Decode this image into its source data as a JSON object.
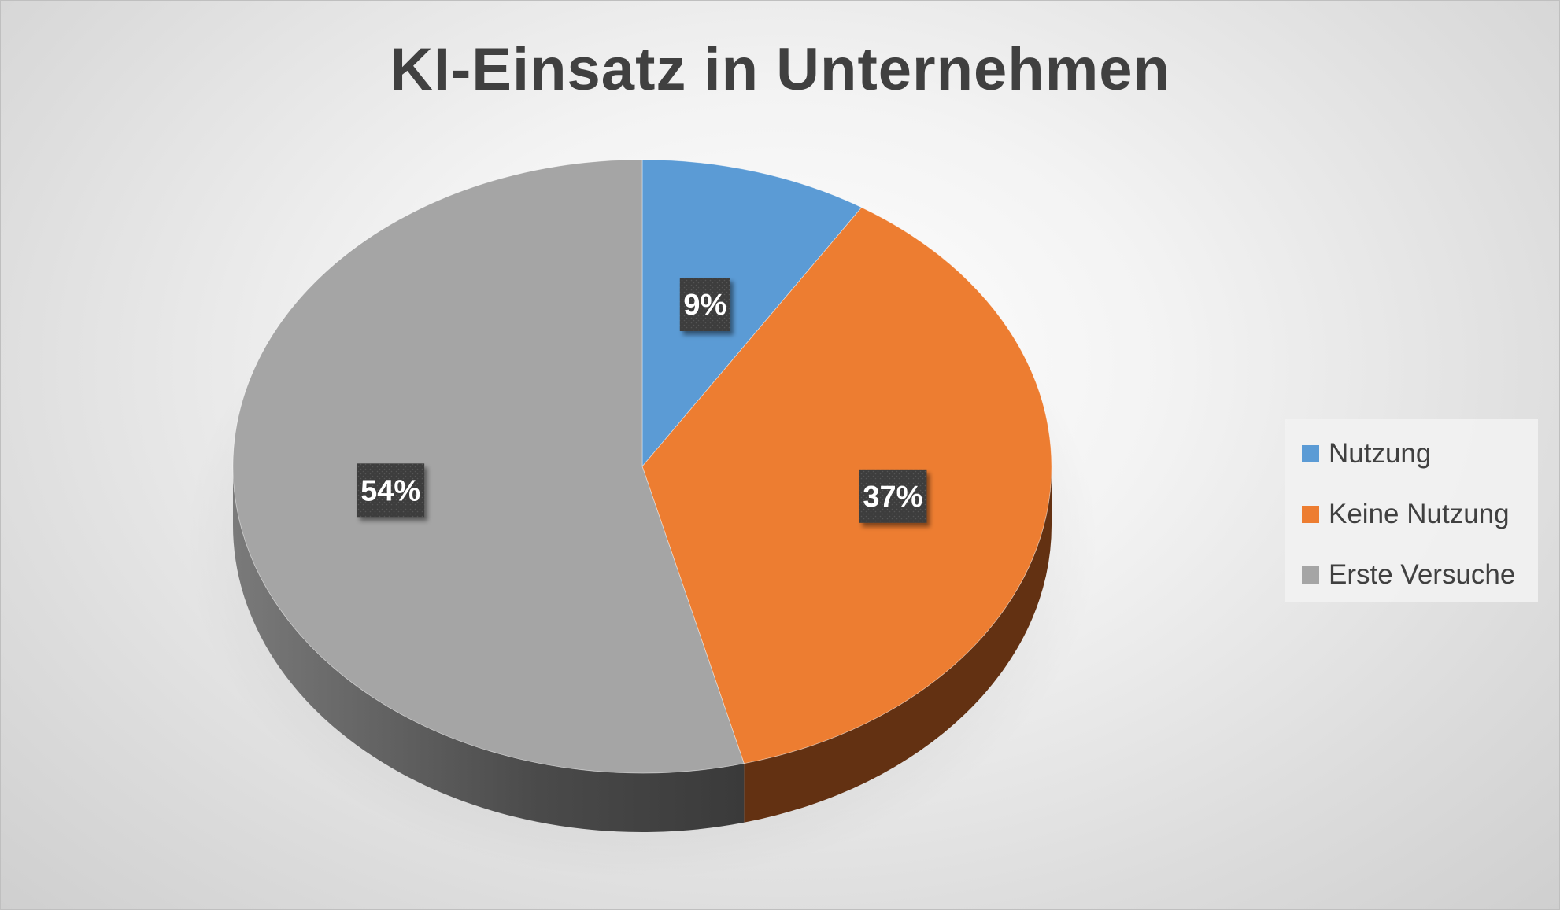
{
  "chart_data": {
    "type": "pie",
    "title": "KI-Einsatz in Unternehmen",
    "categories": [
      "Nutzung",
      "Keine Nutzung",
      "Erste Versuche"
    ],
    "values": [
      9,
      37,
      54
    ],
    "data_labels": [
      "9%",
      "37%",
      "54%"
    ],
    "colors": [
      "#5b9bd5",
      "#ed7d31",
      "#a5a5a5"
    ],
    "side_colors": [
      "#2f5f8f",
      "#633112",
      "#555555"
    ],
    "legend_position": "right",
    "style": "3d"
  }
}
